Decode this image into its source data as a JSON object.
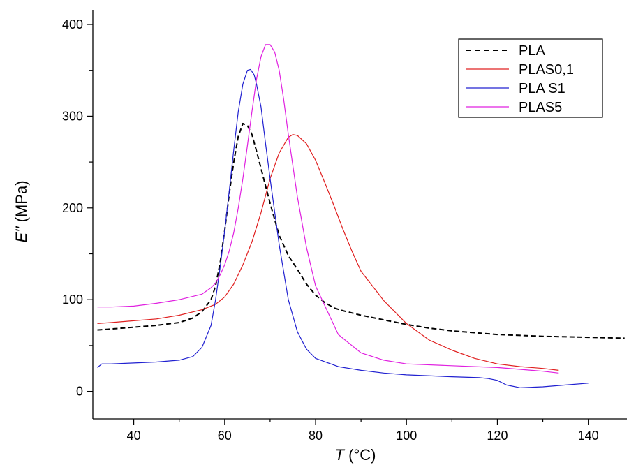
{
  "chart_data": {
    "type": "line",
    "xlabel": {
      "italic": "T",
      "rest": " (°C)"
    },
    "ylabel": {
      "italic": "E''",
      "rest": " (MPa)"
    },
    "xlim": [
      31,
      148.5
    ],
    "ylim": [
      -30,
      416
    ],
    "xticks": [
      40,
      60,
      80,
      100,
      120,
      140
    ],
    "yticks": [
      0,
      100,
      200,
      300,
      400
    ],
    "legend_position": "top-right",
    "series": [
      {
        "name": "PLA",
        "color": "#000000",
        "dash": "dashed",
        "x": [
          32,
          35,
          40,
          45,
          50,
          53,
          55,
          57,
          58,
          59,
          60,
          61,
          62,
          63,
          64,
          65,
          66,
          67,
          68,
          70,
          72,
          74,
          76,
          78,
          80,
          82,
          84,
          86,
          90,
          95,
          100,
          105,
          110,
          120,
          130,
          140,
          148
        ],
        "y": [
          67,
          68,
          70,
          72,
          75,
          80,
          87,
          100,
          115,
          140,
          175,
          215,
          250,
          278,
          292,
          290,
          280,
          262,
          243,
          205,
          170,
          148,
          133,
          117,
          105,
          97,
          91,
          88,
          83,
          78,
          73,
          69,
          66,
          62,
          60,
          59,
          58
        ]
      },
      {
        "name": "PLAS0,1",
        "color": "#e02020",
        "dash": "solid",
        "x": [
          32,
          35,
          40,
          45,
          50,
          55,
          58,
          60,
          62,
          64,
          66,
          68,
          70,
          72,
          74,
          75,
          76,
          78,
          80,
          82,
          84,
          86,
          88,
          90,
          95,
          100,
          105,
          110,
          115,
          120,
          125,
          130,
          133.5
        ],
        "y": [
          74,
          75,
          77,
          79,
          83,
          89,
          95,
          103,
          117,
          138,
          163,
          195,
          232,
          260,
          277,
          280,
          279,
          270,
          252,
          228,
          203,
          177,
          153,
          131,
          99,
          74,
          56,
          45,
          36,
          30,
          27,
          25,
          23
        ]
      },
      {
        "name": "PLA S1",
        "color": "#2020d0",
        "dash": "solid",
        "x": [
          32,
          33,
          35,
          40,
          45,
          50,
          53,
          55,
          57,
          58,
          59,
          60,
          61,
          62,
          63,
          64,
          65,
          65.7,
          66.5,
          67,
          68,
          69,
          70,
          72,
          74,
          76,
          78,
          80,
          85,
          90,
          95,
          100,
          110,
          116,
          118,
          120,
          122,
          125,
          130,
          135,
          140
        ],
        "y": [
          26,
          30,
          30,
          31,
          32,
          34,
          38,
          48,
          72,
          100,
          135,
          175,
          218,
          263,
          305,
          335,
          350,
          351,
          345,
          335,
          310,
          270,
          232,
          160,
          100,
          65,
          46,
          36,
          27,
          23,
          20,
          18,
          16,
          15,
          14,
          12,
          7,
          4,
          5,
          7,
          9
        ]
      },
      {
        "name": "PLAS5",
        "color": "#e020e0",
        "dash": "solid",
        "x": [
          32,
          35,
          40,
          45,
          50,
          55,
          57,
          58,
          59,
          60,
          61,
          62,
          63,
          64,
          65,
          66,
          67,
          68,
          69,
          70,
          71,
          72,
          73,
          74,
          76,
          78,
          80,
          85,
          90,
          95,
          100,
          110,
          115,
          120,
          125,
          130,
          133.5
        ],
        "y": [
          92,
          92,
          93,
          96,
          100,
          106,
          113,
          118,
          127,
          138,
          153,
          173,
          200,
          232,
          268,
          305,
          340,
          365,
          378,
          378,
          370,
          350,
          318,
          280,
          212,
          157,
          115,
          62,
          42,
          34,
          30,
          28,
          27,
          26,
          24,
          22,
          20
        ]
      }
    ]
  }
}
